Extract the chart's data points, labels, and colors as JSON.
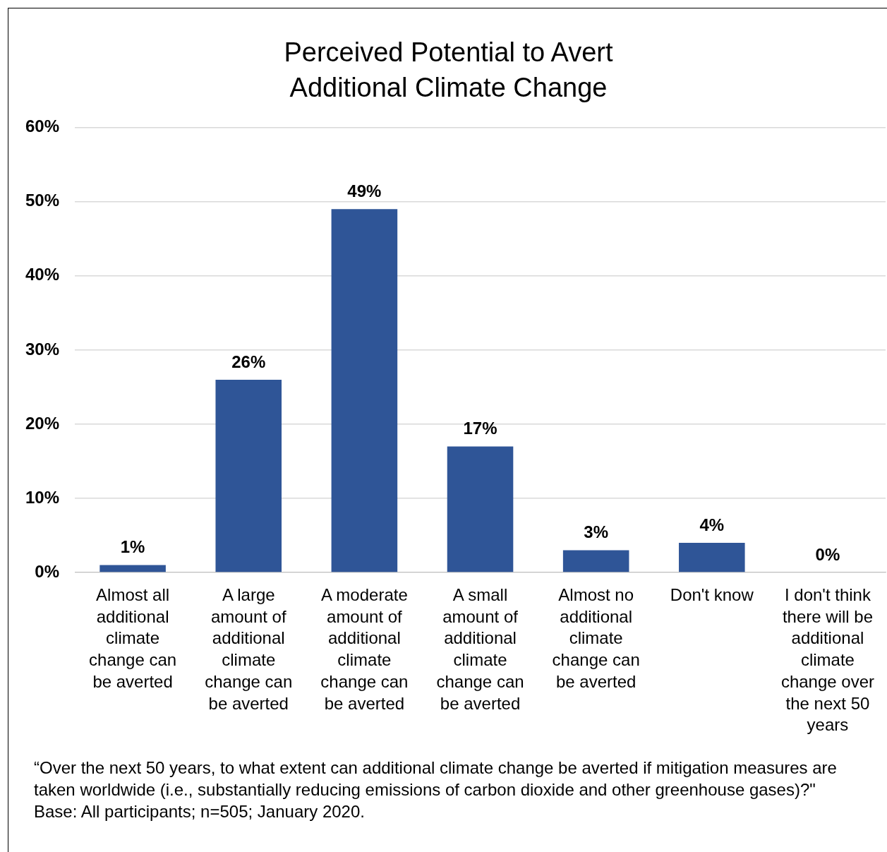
{
  "chart_data": {
    "type": "bar",
    "title": "Perceived Potential to Avert\nAdditional Climate Change",
    "categories": [
      "Almost all additional climate change can be averted",
      "A large amount of additional climate change can be averted",
      "A moderate amount of additional climate change can be averted",
      "A small amount of additional climate change can be averted",
      "Almost no additional climate change can be averted",
      "Don't know",
      "I don't think there will be additional climate change over the next 50 years"
    ],
    "values": [
      1,
      26,
      49,
      17,
      3,
      4,
      0
    ],
    "value_labels": [
      "1%",
      "26%",
      "49%",
      "17%",
      "3%",
      "4%",
      "0%"
    ],
    "color": "#2f5597",
    "ylim": [
      0,
      60
    ],
    "yticks": [
      {
        "value": 0,
        "label": "0%"
      },
      {
        "value": 10,
        "label": "10%"
      },
      {
        "value": 20,
        "label": "20%"
      },
      {
        "value": 30,
        "label": "30%"
      },
      {
        "value": 40,
        "label": "40%"
      },
      {
        "value": 50,
        "label": "50%"
      },
      {
        "value": 60,
        "label": "60%"
      }
    ],
    "grid": "y",
    "annotations": [
      "“Over the next 50 years, to what extent can additional climate change be averted if mitigation measures are taken worldwide (i.e., substantially reducing emissions of carbon dioxide and other greenhouse gases)?\"",
      "Base: All participants; n=505; January 2020."
    ]
  }
}
